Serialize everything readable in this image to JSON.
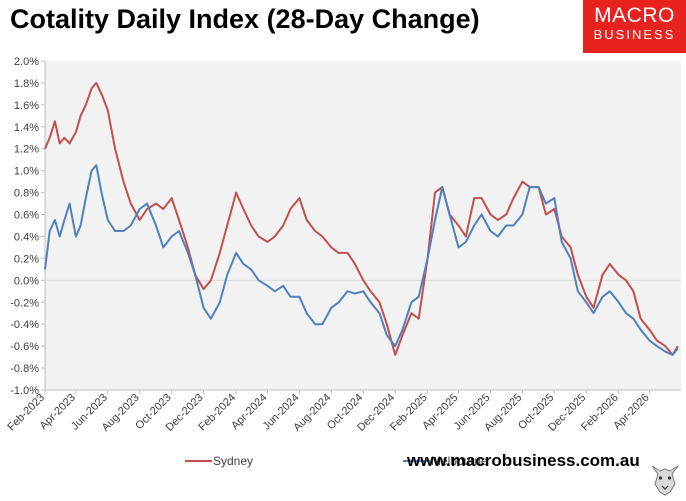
{
  "title": "Cotality Daily Index (28-Day Change)",
  "logo": {
    "line1": "MACRO",
    "line2": "BUSINESS",
    "color": "#e8231f"
  },
  "footer_url": "www.macrobusiness.com.au",
  "mascot_icon": "wolf-head-icon",
  "chart_data": {
    "type": "line",
    "title": "Cotality Daily Index (28-Day Change)",
    "xlabel": "",
    "ylabel": "",
    "ylim": [
      -0.01,
      0.02
    ],
    "yticks": [
      -0.01,
      -0.008,
      -0.006,
      -0.004,
      -0.002,
      0.0,
      0.002,
      0.004,
      0.006,
      0.008,
      0.01,
      0.012,
      0.014,
      0.016,
      0.018,
      0.02
    ],
    "ytick_labels": [
      "-1.0%",
      "-0.8%",
      "-0.6%",
      "-0.4%",
      "-0.2%",
      "0.0%",
      "0.2%",
      "0.4%",
      "0.6%",
      "0.8%",
      "1.0%",
      "1.2%",
      "1.4%",
      "1.6%",
      "1.8%",
      "2.0%"
    ],
    "xlim": [
      "2023-02-01",
      "2026-05-31"
    ],
    "xtick_labels": [
      "Feb-2023",
      "Apr-2023",
      "Jun-2023",
      "Aug-2023",
      "Oct-2023",
      "Dec-2023",
      "Feb-2024",
      "Apr-2024",
      "Jun-2024",
      "Aug-2024",
      "Oct-2024",
      "Dec-2024",
      "Feb-2025",
      "Apr-2025",
      "Jun-2025",
      "Aug-2025",
      "Oct-2025",
      "Dec-2025",
      "Feb-2026",
      "Apr-2026"
    ],
    "xticks": [
      "2023-02-01",
      "2023-04-01",
      "2023-06-01",
      "2023-08-01",
      "2023-10-01",
      "2023-12-01",
      "2024-02-01",
      "2024-04-01",
      "2024-06-01",
      "2024-08-01",
      "2024-10-01",
      "2024-12-01",
      "2025-02-01",
      "2025-04-01",
      "2025-06-01",
      "2025-08-01",
      "2025-10-01",
      "2025-12-01",
      "2026-02-01",
      "2026-04-01"
    ],
    "grid": false,
    "zero_line": true,
    "plot_background": "#f2f2f2",
    "legend_position": "bottom",
    "series": [
      {
        "name": "Sydney",
        "color": "#c0504d",
        "x": [
          "2023-02-01",
          "2023-02-10",
          "2023-02-20",
          "2023-03-01",
          "2023-03-10",
          "2023-03-20",
          "2023-04-01",
          "2023-04-10",
          "2023-04-20",
          "2023-05-01",
          "2023-05-10",
          "2023-05-20",
          "2023-06-01",
          "2023-06-15",
          "2023-07-01",
          "2023-07-15",
          "2023-08-01",
          "2023-08-15",
          "2023-09-01",
          "2023-09-15",
          "2023-10-01",
          "2023-10-15",
          "2023-11-01",
          "2023-11-15",
          "2023-12-01",
          "2023-12-15",
          "2024-01-01",
          "2024-01-15",
          "2024-02-01",
          "2024-02-15",
          "2024-03-01",
          "2024-03-15",
          "2024-04-01",
          "2024-04-15",
          "2024-05-01",
          "2024-05-15",
          "2024-06-01",
          "2024-06-15",
          "2024-07-01",
          "2024-07-15",
          "2024-08-01",
          "2024-08-15",
          "2024-09-01",
          "2024-09-15",
          "2024-10-01",
          "2024-10-15",
          "2024-11-01",
          "2024-11-15",
          "2024-12-01",
          "2024-12-15",
          "2025-01-01",
          "2025-01-15",
          "2025-02-01",
          "2025-02-15",
          "2025-03-01",
          "2025-03-15",
          "2025-04-01",
          "2025-04-15",
          "2025-05-01",
          "2025-05-15",
          "2025-06-01",
          "2025-06-15",
          "2025-07-01",
          "2025-07-15",
          "2025-08-01",
          "2025-08-15",
          "2025-09-01",
          "2025-09-15",
          "2025-10-01",
          "2025-10-15",
          "2025-11-01",
          "2025-11-15",
          "2025-12-01",
          "2025-12-15",
          "2026-01-01",
          "2026-01-15",
          "2026-02-01",
          "2026-02-15",
          "2026-03-01",
          "2026-03-15",
          "2026-04-01",
          "2026-04-15",
          "2026-05-01",
          "2026-05-15",
          "2026-05-25"
        ],
        "values": [
          0.012,
          0.013,
          0.0145,
          0.0125,
          0.013,
          0.0125,
          0.0135,
          0.015,
          0.016,
          0.0175,
          0.018,
          0.017,
          0.0155,
          0.012,
          0.009,
          0.007,
          0.0055,
          0.0065,
          0.007,
          0.0065,
          0.0075,
          0.0055,
          0.003,
          0.0005,
          -0.0008,
          0.0,
          0.0025,
          0.005,
          0.008,
          0.0065,
          0.005,
          0.004,
          0.0035,
          0.004,
          0.005,
          0.0065,
          0.0075,
          0.0055,
          0.0045,
          0.004,
          0.003,
          0.0025,
          0.0025,
          0.0015,
          0.0,
          -0.001,
          -0.002,
          -0.004,
          -0.0068,
          -0.005,
          -0.003,
          -0.0035,
          0.002,
          0.008,
          0.0085,
          0.006,
          0.005,
          0.004,
          0.0075,
          0.0075,
          0.006,
          0.0055,
          0.006,
          0.0075,
          0.009,
          0.0085,
          0.0085,
          0.006,
          0.0065,
          0.004,
          0.003,
          0.0005,
          -0.0015,
          -0.0025,
          0.0005,
          0.0015,
          0.0005,
          0.0,
          -0.001,
          -0.0035,
          -0.0045,
          -0.0055,
          -0.006,
          -0.0068,
          -0.006
        ]
      },
      {
        "name": "Melbourne",
        "color": "#4f81bd",
        "x": [
          "2023-02-01",
          "2023-02-10",
          "2023-02-20",
          "2023-03-01",
          "2023-03-10",
          "2023-03-20",
          "2023-04-01",
          "2023-04-10",
          "2023-04-20",
          "2023-05-01",
          "2023-05-10",
          "2023-05-20",
          "2023-06-01",
          "2023-06-15",
          "2023-07-01",
          "2023-07-15",
          "2023-08-01",
          "2023-08-15",
          "2023-09-01",
          "2023-09-15",
          "2023-10-01",
          "2023-10-15",
          "2023-11-01",
          "2023-11-15",
          "2023-12-01",
          "2023-12-15",
          "2024-01-01",
          "2024-01-15",
          "2024-02-01",
          "2024-02-15",
          "2024-03-01",
          "2024-03-15",
          "2024-04-01",
          "2024-04-15",
          "2024-05-01",
          "2024-05-15",
          "2024-06-01",
          "2024-06-15",
          "2024-07-01",
          "2024-07-15",
          "2024-08-01",
          "2024-08-15",
          "2024-09-01",
          "2024-09-15",
          "2024-10-01",
          "2024-10-15",
          "2024-11-01",
          "2024-11-15",
          "2024-12-01",
          "2024-12-15",
          "2025-01-01",
          "2025-01-15",
          "2025-02-01",
          "2025-02-15",
          "2025-03-01",
          "2025-03-15",
          "2025-04-01",
          "2025-04-15",
          "2025-05-01",
          "2025-05-15",
          "2025-06-01",
          "2025-06-15",
          "2025-07-01",
          "2025-07-15",
          "2025-08-01",
          "2025-08-15",
          "2025-09-01",
          "2025-09-15",
          "2025-10-01",
          "2025-10-15",
          "2025-11-01",
          "2025-11-15",
          "2025-12-01",
          "2025-12-15",
          "2026-01-01",
          "2026-01-15",
          "2026-02-01",
          "2026-02-15",
          "2026-03-01",
          "2026-03-15",
          "2026-04-01",
          "2026-04-15",
          "2026-05-01",
          "2026-05-15",
          "2026-05-25"
        ],
        "values": [
          0.001,
          0.0045,
          0.0055,
          0.004,
          0.0055,
          0.007,
          0.004,
          0.005,
          0.0075,
          0.01,
          0.0105,
          0.008,
          0.0055,
          0.0045,
          0.0045,
          0.005,
          0.0065,
          0.007,
          0.005,
          0.003,
          0.004,
          0.0045,
          0.0025,
          0.0005,
          -0.0025,
          -0.0035,
          -0.002,
          0.0005,
          0.0025,
          0.0015,
          0.001,
          0.0,
          -0.0005,
          -0.001,
          -0.0005,
          -0.0015,
          -0.0015,
          -0.003,
          -0.004,
          -0.004,
          -0.0025,
          -0.002,
          -0.001,
          -0.0012,
          -0.001,
          -0.002,
          -0.003,
          -0.005,
          -0.006,
          -0.0045,
          -0.002,
          -0.0015,
          0.002,
          0.0055,
          0.0085,
          0.006,
          0.003,
          0.0035,
          0.005,
          0.006,
          0.0045,
          0.004,
          0.005,
          0.005,
          0.006,
          0.0085,
          0.0085,
          0.007,
          0.0075,
          0.0035,
          0.002,
          -0.001,
          -0.002,
          -0.003,
          -0.0015,
          -0.001,
          -0.002,
          -0.003,
          -0.0035,
          -0.0045,
          -0.0055,
          -0.006,
          -0.0065,
          -0.0068,
          -0.0062
        ]
      }
    ]
  }
}
